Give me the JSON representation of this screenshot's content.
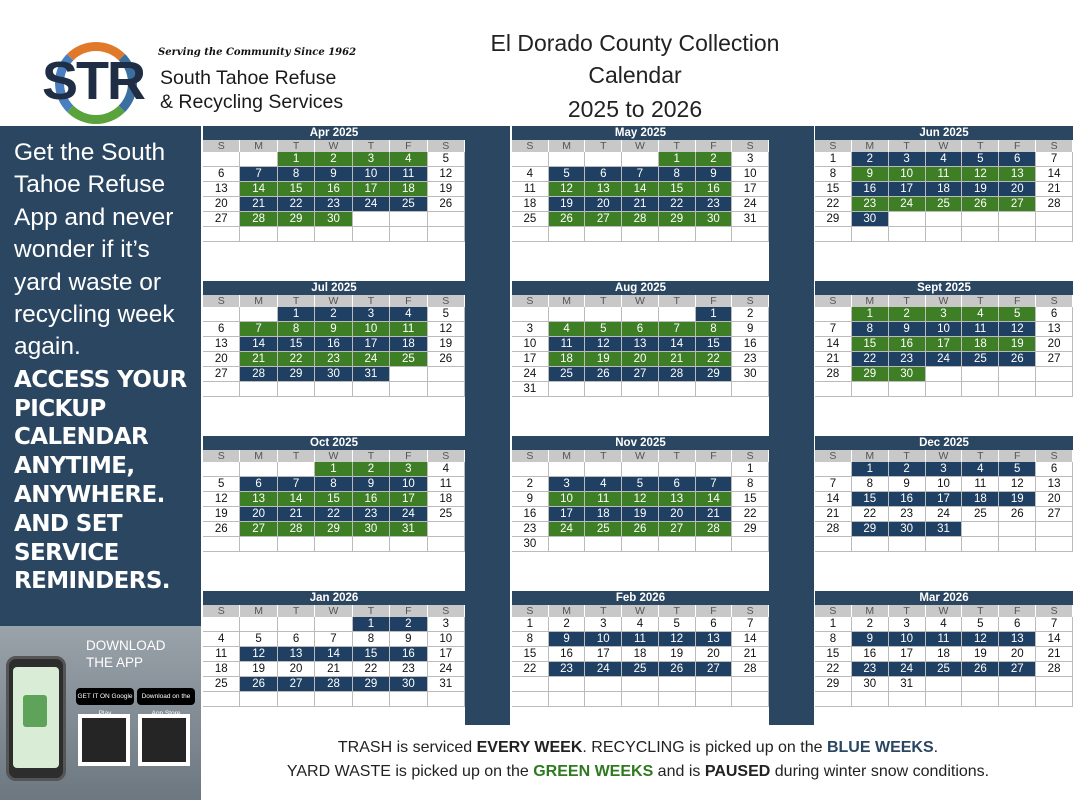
{
  "header": {
    "tagline": "Serving the Community Since 1962",
    "logo_letters": "STR",
    "brand_line1": "South Tahoe Refuse",
    "brand_line2": "& Recycling Services",
    "title_line1": "El Dorado County Collection",
    "title_line2": "Calendar",
    "title_line3": "2025 to 2026"
  },
  "sidebar": {
    "promo": "Get the South Tahoe Refuse App and never wonder if it’s yard waste or recycling week again.",
    "cta": "ACCESS YOUR PICKUP CALENDAR ANYTIME, ANYWHERE. AND SET SERVICE REMINDERS."
  },
  "download": {
    "label_line1": "DOWNLOAD",
    "label_line2": "THE APP",
    "google_play": "GET IT ON Google Play",
    "app_store": "Download on the App Store"
  },
  "weekday_labels": [
    "S",
    "M",
    "T",
    "W",
    "T",
    "F",
    "S"
  ],
  "legend": {
    "trash_pre": "TRASH is serviced ",
    "trash_bold": "EVERY WEEK",
    "recycle_pre": ". RECYCLING is picked up on the ",
    "recycle_bold": "BLUE WEEKS",
    "recycle_post": ".",
    "yard_pre": "YARD WASTE is picked up on the ",
    "yard_bold": "GREEN WEEKS",
    "yard_mid": " and is ",
    "yard_paused": "PAUSED",
    "yard_post": " during winter snow conditions."
  },
  "colors": {
    "navy": "#2b4661",
    "blue_week": "#1f4063",
    "green_week": "#3e7f25"
  },
  "months": [
    {
      "name": "Apr 2025",
      "start": 2,
      "days": 30,
      "blue": [
        7,
        8,
        9,
        10,
        11,
        21,
        22,
        23,
        24,
        25
      ],
      "green": [
        1,
        2,
        3,
        4,
        14,
        15,
        16,
        17,
        18,
        28,
        29,
        30
      ]
    },
    {
      "name": "May 2025",
      "start": 4,
      "days": 31,
      "blue": [
        5,
        6,
        7,
        8,
        9,
        19,
        20,
        21,
        22,
        23
      ],
      "green": [
        1,
        2,
        12,
        13,
        14,
        15,
        16,
        26,
        27,
        28,
        29,
        30
      ]
    },
    {
      "name": "Jun 2025",
      "start": 0,
      "days": 30,
      "blue": [
        2,
        3,
        4,
        5,
        6,
        16,
        17,
        18,
        19,
        20,
        30
      ],
      "green": [
        9,
        10,
        11,
        12,
        13,
        23,
        24,
        25,
        26,
        27
      ]
    },
    {
      "name": "Jul 2025",
      "start": 2,
      "days": 31,
      "blue": [
        1,
        2,
        3,
        4,
        14,
        15,
        16,
        17,
        18,
        28,
        29,
        30,
        31
      ],
      "green": [
        7,
        8,
        9,
        10,
        11,
        21,
        22,
        23,
        24,
        25
      ]
    },
    {
      "name": "Aug 2025",
      "start": 5,
      "days": 31,
      "blue": [
        1,
        11,
        12,
        13,
        14,
        15,
        25,
        26,
        27,
        28,
        29
      ],
      "green": [
        4,
        5,
        6,
        7,
        8,
        18,
        19,
        20,
        21,
        22
      ]
    },
    {
      "name": "Sept 2025",
      "start": 1,
      "days": 30,
      "blue": [
        8,
        9,
        10,
        11,
        12,
        22,
        23,
        24,
        25,
        26
      ],
      "green": [
        1,
        2,
        3,
        4,
        5,
        15,
        16,
        17,
        18,
        19,
        29,
        30
      ]
    },
    {
      "name": "Oct 2025",
      "start": 3,
      "days": 31,
      "blue": [
        6,
        7,
        8,
        9,
        10,
        20,
        21,
        22,
        23,
        24
      ],
      "green": [
        1,
        2,
        3,
        13,
        14,
        15,
        16,
        17,
        27,
        28,
        29,
        30,
        31
      ]
    },
    {
      "name": "Nov 2025",
      "start": 6,
      "days": 30,
      "blue": [
        3,
        4,
        5,
        6,
        7,
        17,
        18,
        19,
        20,
        21
      ],
      "green": [
        10,
        11,
        12,
        13,
        14,
        24,
        25,
        26,
        27,
        28
      ]
    },
    {
      "name": "Dec 2025",
      "start": 1,
      "days": 31,
      "blue": [
        1,
        2,
        3,
        4,
        5,
        15,
        16,
        17,
        18,
        19,
        29,
        30,
        31
      ],
      "green": []
    },
    {
      "name": "Jan 2026",
      "start": 4,
      "days": 31,
      "blue": [
        1,
        2,
        12,
        13,
        14,
        15,
        16,
        26,
        27,
        28,
        29,
        30
      ],
      "green": []
    },
    {
      "name": "Feb 2026",
      "start": 0,
      "days": 28,
      "blue": [
        9,
        10,
        11,
        12,
        13,
        23,
        24,
        25,
        26,
        27
      ],
      "green": []
    },
    {
      "name": "Mar 2026",
      "start": 0,
      "days": 31,
      "blue": [
        9,
        10,
        11,
        12,
        13,
        23,
        24,
        25,
        26,
        27
      ],
      "green": []
    }
  ]
}
